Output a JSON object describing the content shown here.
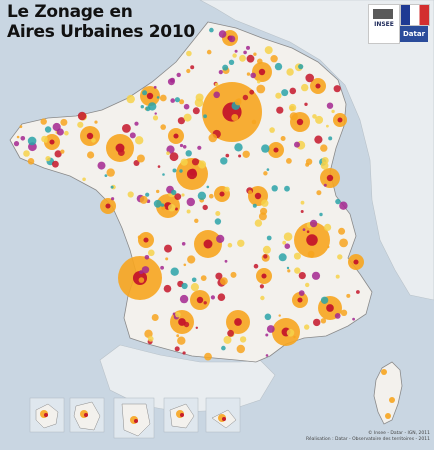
{
  "map": {
    "title_line1": "Le Zonage en",
    "title_line2": "Aires Urbaines 2010",
    "logos": {
      "insee_label": "INSEE",
      "datar_label": "Datar"
    },
    "credits_line1": "© Insee - Datar - IGN, 2011",
    "credits_line2": "Réalisation : Datar - Observatoire des territoires - 2011"
  },
  "colors": {
    "sea": "#c9d6e2",
    "neighbor_land": "#e9edf0",
    "land": "#f3f1ed",
    "large_pole": "#c4162a",
    "large_crown": "#f7a51f",
    "multipolar": "#f6d24a",
    "medium_pole": "#2aa3a8",
    "small_pole": "#a3278f",
    "border": "#8a8a8a"
  }
}
